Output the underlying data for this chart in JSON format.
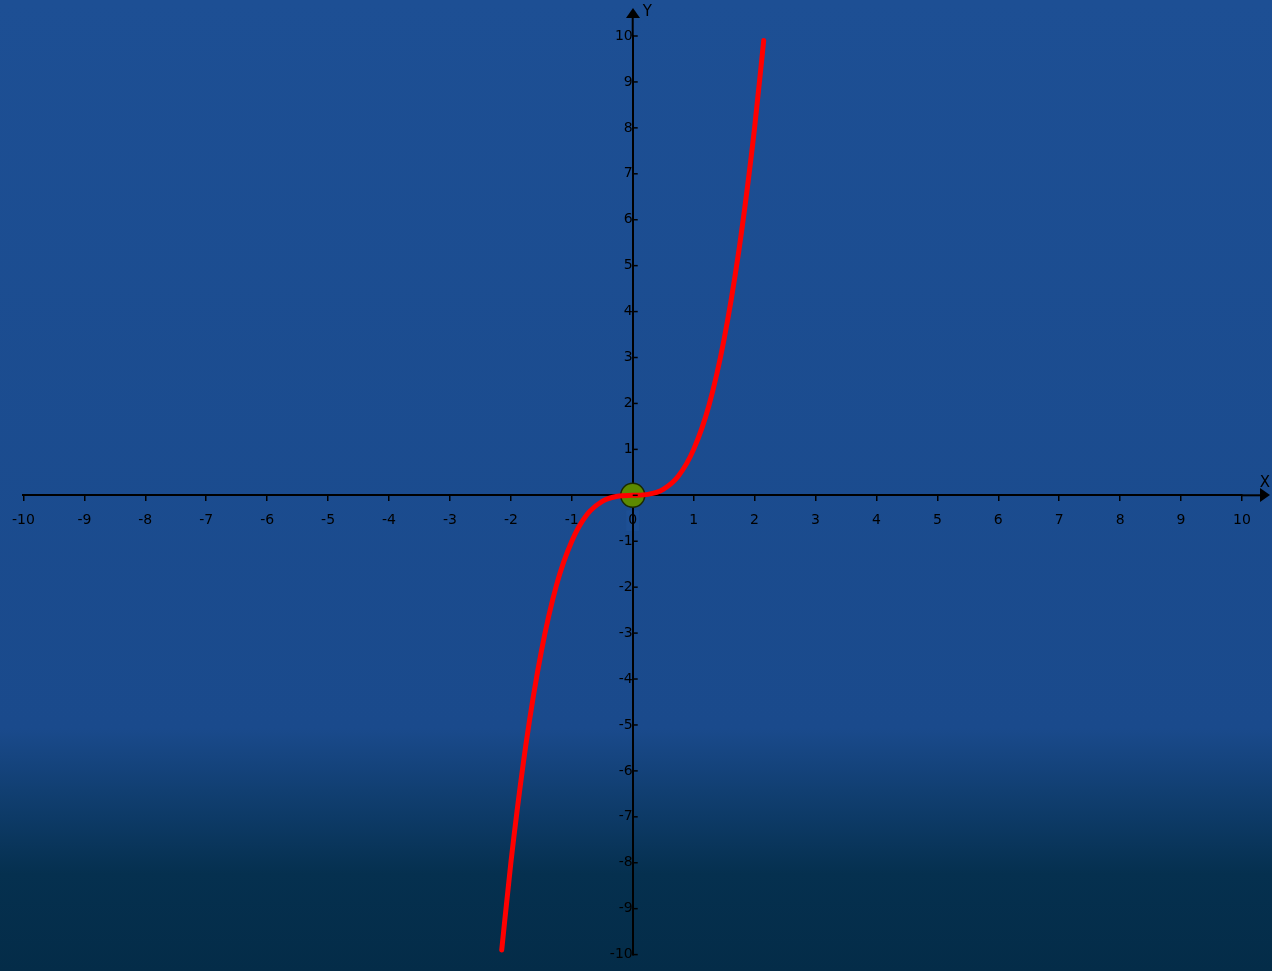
{
  "chart_data": {
    "type": "line",
    "xlabel": "X",
    "ylabel": "Y",
    "xlim": [
      -10,
      10
    ],
    "ylim": [
      -10,
      10
    ],
    "xticks": [
      -10,
      -9,
      -8,
      -7,
      -6,
      -5,
      -4,
      -3,
      -2,
      -1,
      0,
      1,
      2,
      3,
      4,
      5,
      6,
      7,
      8,
      9,
      10
    ],
    "yticks": [
      -10,
      -9,
      -8,
      -7,
      -6,
      -5,
      -4,
      -3,
      -2,
      -1,
      {
        "value": 0,
        "label": null
      },
      1,
      2,
      3,
      4,
      5,
      6,
      7,
      8,
      9,
      10
    ],
    "grid": false,
    "legend": false,
    "line_style": "solid",
    "series": [
      {
        "type": "line",
        "color": "#ff0000",
        "marker": "none",
        "x": [
          -2.15,
          -2,
          -1.75,
          -1.5,
          -1.25,
          -1,
          -0.75,
          -0.5,
          -0.25,
          0,
          0.25,
          0.5,
          0.75,
          1,
          1.25,
          1.5,
          1.75,
          2,
          2.15
        ],
        "values": [
          -9.9,
          -8,
          -5.4,
          -3.4,
          -1.95,
          -1,
          -0.42,
          -0.13,
          -0.02,
          0,
          0.02,
          0.13,
          0.42,
          1,
          1.95,
          3.4,
          5.4,
          8,
          9.9
        ]
      },
      {
        "type": "scatter",
        "color": "#5c8a00",
        "marker": "circle",
        "x": [
          0
        ],
        "values": [
          0
        ]
      }
    ]
  }
}
